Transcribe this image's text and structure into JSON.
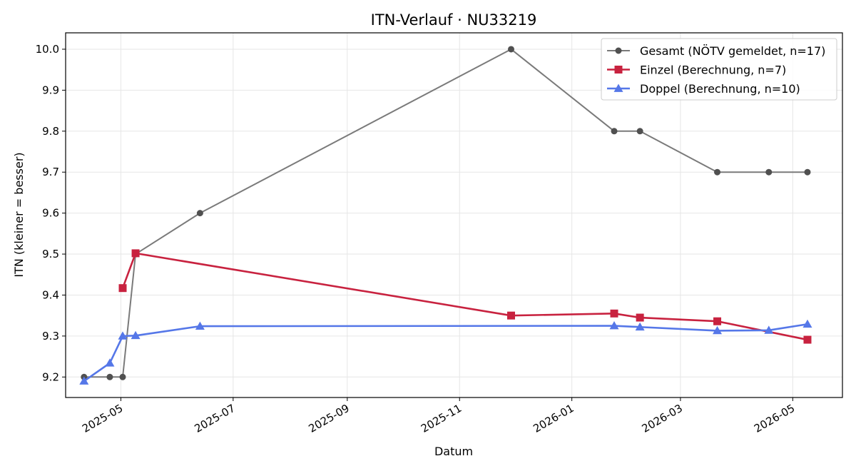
{
  "chart_data": {
    "type": "line",
    "title": "ITN-Verlauf · NU33219",
    "xlabel": "Datum",
    "ylabel": "ITN  (kleiner = besser)",
    "x_axis": {
      "kind": "date",
      "range": [
        "2025-04-01",
        "2026-05-28"
      ],
      "ticks": [
        {
          "date": "2025-05-01",
          "label": "2025-05"
        },
        {
          "date": "2025-07-01",
          "label": "2025-07"
        },
        {
          "date": "2025-09-01",
          "label": "2025-09"
        },
        {
          "date": "2025-11-01",
          "label": "2025-11"
        },
        {
          "date": "2026-01-01",
          "label": "2026-01"
        },
        {
          "date": "2026-03-01",
          "label": "2026-03"
        },
        {
          "date": "2026-05-01",
          "label": "2026-05"
        }
      ]
    },
    "y_axis": {
      "range": [
        9.15,
        10.04
      ],
      "ticks": [
        {
          "value": 9.2,
          "label": "9.2"
        },
        {
          "value": 9.3,
          "label": "9.3"
        },
        {
          "value": 9.4,
          "label": "9.4"
        },
        {
          "value": 9.5,
          "label": "9.5"
        },
        {
          "value": 9.6,
          "label": "9.6"
        },
        {
          "value": 9.7,
          "label": "9.7"
        },
        {
          "value": 9.8,
          "label": "9.8"
        },
        {
          "value": 9.9,
          "label": "9.9"
        },
        {
          "value": 10.0,
          "label": "10.0"
        }
      ]
    },
    "grid": true,
    "legend": "top-right",
    "series": [
      {
        "name": "Gesamt (NÖTV gemeldet, n=17)",
        "color": "#7a7a7a",
        "marker_color": "#505050",
        "marker": "circle",
        "points": [
          {
            "x": "2025-04-11",
            "y": 9.2
          },
          {
            "x": "2025-04-25",
            "y": 9.2
          },
          {
            "x": "2025-05-02",
            "y": 9.2
          },
          {
            "x": "2025-05-09",
            "y": 9.5
          },
          {
            "x": "2025-06-13",
            "y": 9.6
          },
          {
            "x": "2025-11-29",
            "y": 10.0
          },
          {
            "x": "2026-01-24",
            "y": 9.8
          },
          {
            "x": "2026-02-07",
            "y": 9.8
          },
          {
            "x": "2026-03-21",
            "y": 9.7
          },
          {
            "x": "2026-04-18",
            "y": 9.7
          },
          {
            "x": "2026-05-09",
            "y": 9.7
          }
        ]
      },
      {
        "name": "Einzel (Berechnung, n=7)",
        "color": "#c8223f",
        "marker_color": "#c8223f",
        "marker": "square",
        "points": [
          {
            "x": "2025-05-02",
            "y": 9.417
          },
          {
            "x": "2025-05-09",
            "y": 9.502
          },
          {
            "x": "2025-11-29",
            "y": 9.35
          },
          {
            "x": "2026-01-24",
            "y": 9.355
          },
          {
            "x": "2026-02-07",
            "y": 9.345
          },
          {
            "x": "2026-03-21",
            "y": 9.336
          },
          {
            "x": "2026-05-09",
            "y": 9.291
          }
        ]
      },
      {
        "name": "Doppel (Berechnung, n=10)",
        "color": "#5577e8",
        "marker_color": "#5577e8",
        "marker": "triangle",
        "points": [
          {
            "x": "2025-04-11",
            "y": 9.19
          },
          {
            "x": "2025-04-25",
            "y": 9.234
          },
          {
            "x": "2025-05-02",
            "y": 9.3
          },
          {
            "x": "2025-05-09",
            "y": 9.301
          },
          {
            "x": "2025-06-13",
            "y": 9.324
          },
          {
            "x": "2026-01-24",
            "y": 9.325
          },
          {
            "x": "2026-02-07",
            "y": 9.322
          },
          {
            "x": "2026-03-21",
            "y": 9.313
          },
          {
            "x": "2026-04-18",
            "y": 9.314
          },
          {
            "x": "2026-05-09",
            "y": 9.329
          }
        ]
      }
    ]
  }
}
